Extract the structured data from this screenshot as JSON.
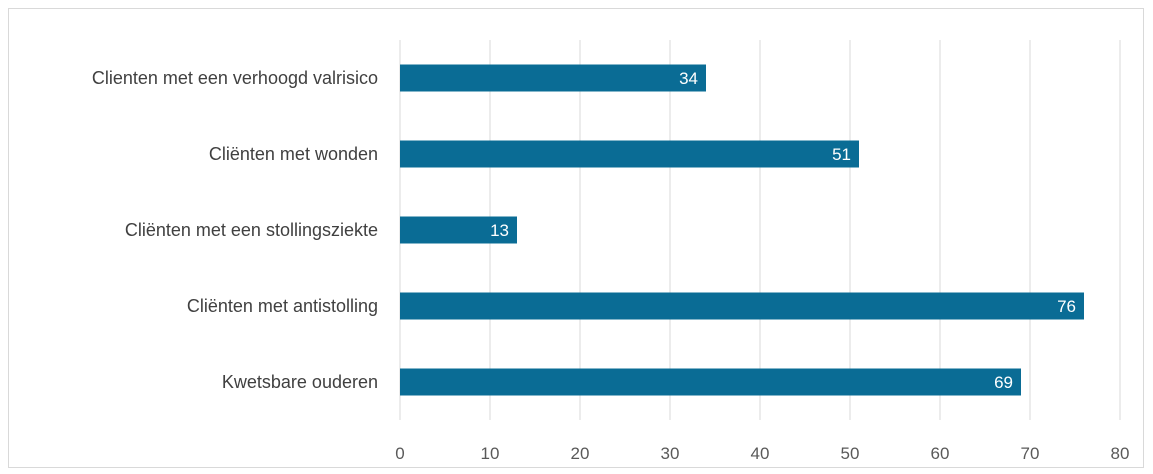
{
  "chart_data": {
    "type": "bar",
    "orientation": "horizontal",
    "categories": [
      "Clienten met een verhoogd valrisico",
      "Cliënten met wonden",
      "Cliënten met een stollingsziekte",
      "Cliënten met antistolling",
      "Kwetsbare ouderen"
    ],
    "values": [
      34,
      51,
      13,
      76,
      69
    ],
    "xlim": [
      0,
      80
    ],
    "xticks": [
      0,
      10,
      20,
      30,
      40,
      50,
      60,
      70,
      80
    ],
    "grid": true,
    "data_labels": true,
    "bar_color": "#0A6C95",
    "grid_color": "#d9d9d9"
  }
}
